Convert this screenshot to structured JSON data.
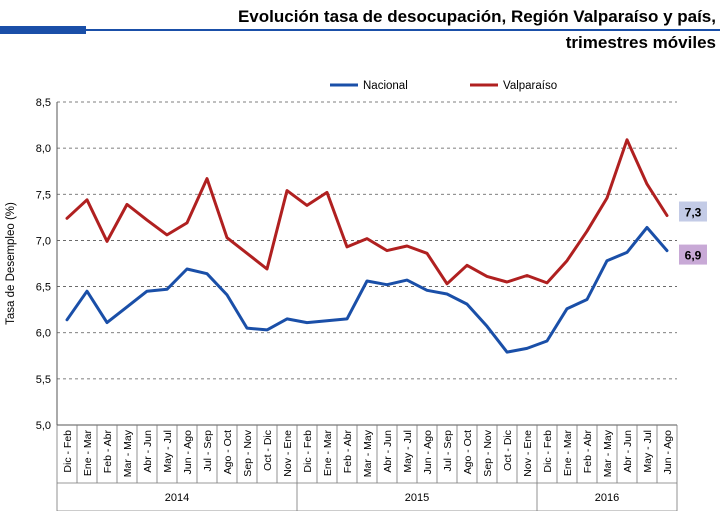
{
  "title_line1": "Evolución tasa de desocupación, Región Valparaíso y país,",
  "title_line2": "trimestres móviles",
  "chart_data": {
    "type": "line",
    "title": "Evolución tasa de desocupación, Región Valparaíso y país, trimestres móviles",
    "ylabel": "Tasa de Desempleo (%)",
    "xlabel": "",
    "ylim": [
      5.0,
      8.5
    ],
    "yticks": [
      "5,0",
      "5,5",
      "6,0",
      "6,5",
      "7,0",
      "7,5",
      "8,0",
      "8,5"
    ],
    "grid": "horizontal-dashed",
    "legend_position": "top",
    "categories": [
      "Dic - Feb",
      "Ene - Mar",
      "Feb - Abr",
      "Mar - May",
      "Abr - Jun",
      "May - Jul",
      "Jun - Ago",
      "Jul - Sep",
      "Ago - Oct",
      "Sep - Nov",
      "Oct - Dic",
      "Nov - Ene",
      "Dic - Feb",
      "Ene - Mar",
      "Feb - Abr",
      "Mar - May",
      "Abr - Jun",
      "May - Jul",
      "Jun - Ago",
      "Jul - Sep",
      "Ago - Oct",
      "Sep - Nov",
      "Oct - Dic",
      "Nov - Ene",
      "Dic - Feb",
      "Ene - Mar",
      "Feb - Abr",
      "Mar - May",
      "Abr - Jun",
      "May - Jul",
      "Jun - Ago"
    ],
    "year_groups": [
      {
        "label": "2014",
        "count": 12
      },
      {
        "label": "2015",
        "count": 12
      },
      {
        "label": "2016",
        "count": 7
      }
    ],
    "series": [
      {
        "name": "Nacional",
        "color": "#1a4fa8",
        "values": [
          6.14,
          6.45,
          6.11,
          6.28,
          6.45,
          6.47,
          6.69,
          6.64,
          6.41,
          6.05,
          6.03,
          6.15,
          6.11,
          6.13,
          6.15,
          6.56,
          6.52,
          6.57,
          6.46,
          6.42,
          6.31,
          6.07,
          5.79,
          5.83,
          5.91,
          6.26,
          6.36,
          6.78,
          6.87,
          7.14,
          6.89
        ],
        "end_label": "6,9",
        "end_label_bg": "#c8a9d6"
      },
      {
        "name": "Valparaíso",
        "color": "#b02020",
        "values": [
          7.24,
          7.44,
          6.99,
          7.39,
          7.22,
          7.06,
          7.19,
          7.67,
          7.03,
          6.86,
          6.69,
          7.54,
          7.38,
          7.52,
          6.93,
          7.02,
          6.89,
          6.94,
          6.86,
          6.53,
          6.73,
          6.61,
          6.55,
          6.62,
          6.54,
          6.78,
          7.1,
          7.46,
          8.09,
          7.61,
          7.27
        ],
        "end_label": "7,3",
        "end_label_bg": "#c3cbe6"
      }
    ]
  }
}
